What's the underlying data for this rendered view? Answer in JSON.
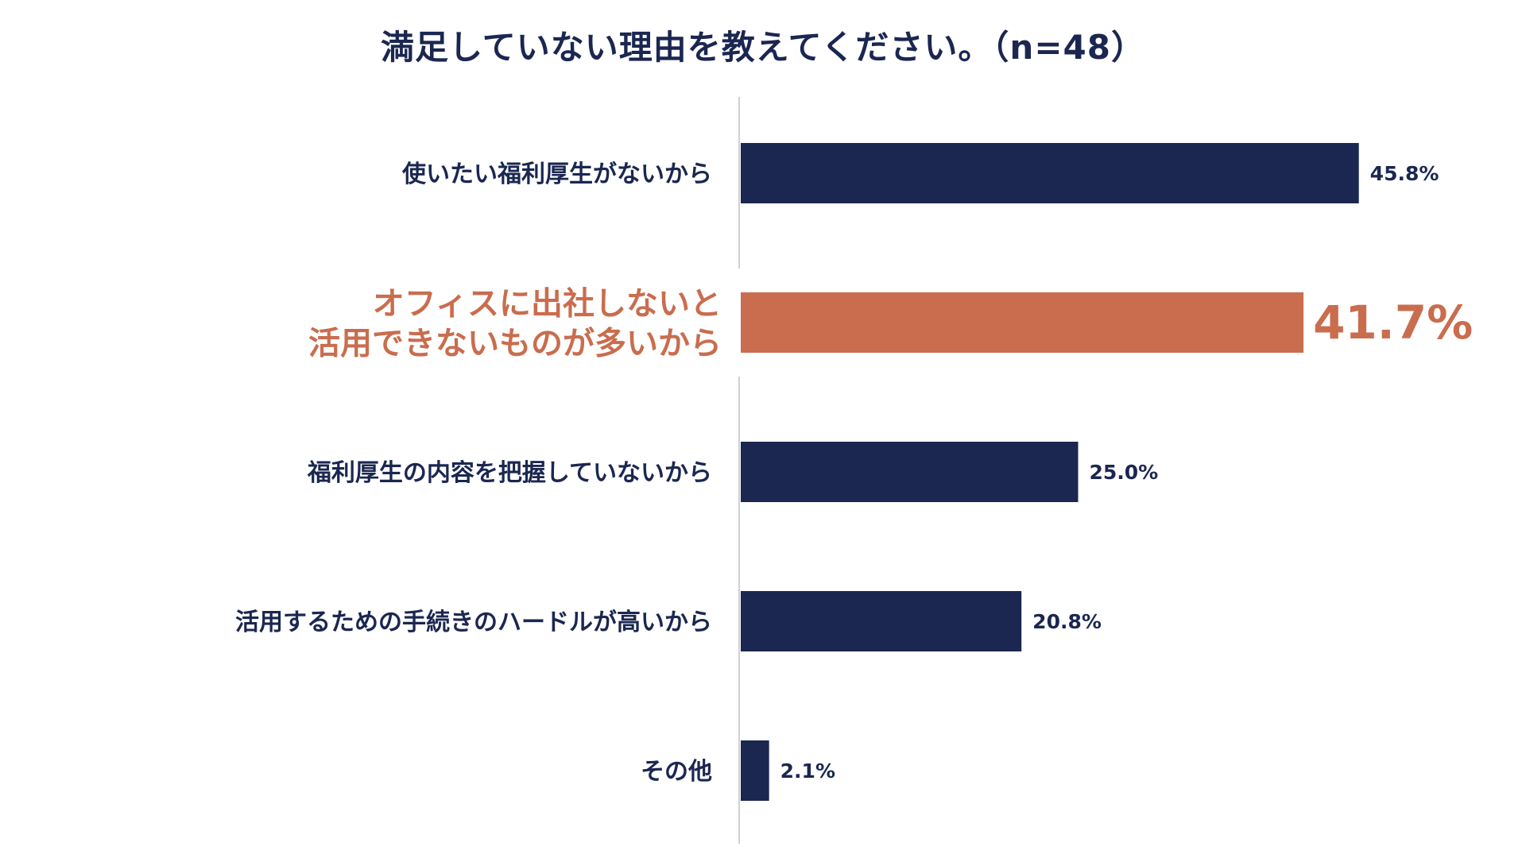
{
  "chart_data": {
    "type": "bar",
    "orientation": "horizontal",
    "title": "満足していない理由を教えてください。（n=48）",
    "categories": [
      "使いたい福利厚生がないから",
      "オフィスに出社しないと\n活用できないものが多いから",
      "福利厚生の内容を把握していないから",
      "活用するための手続きのハードルが高いから",
      "その他"
    ],
    "values": [
      45.8,
      41.7,
      25.0,
      20.8,
      2.1
    ],
    "value_labels": [
      "45.8%",
      "41.7%",
      "25.0%",
      "20.8%",
      "2.1%"
    ],
    "highlight_index": 1,
    "xlim": [
      0,
      50
    ],
    "grid": false,
    "legend": "none",
    "colors": {
      "bar": "#1b2751",
      "highlight": "#c96d4e",
      "axis": "#d0d0d0",
      "text": "#1b2751"
    }
  }
}
